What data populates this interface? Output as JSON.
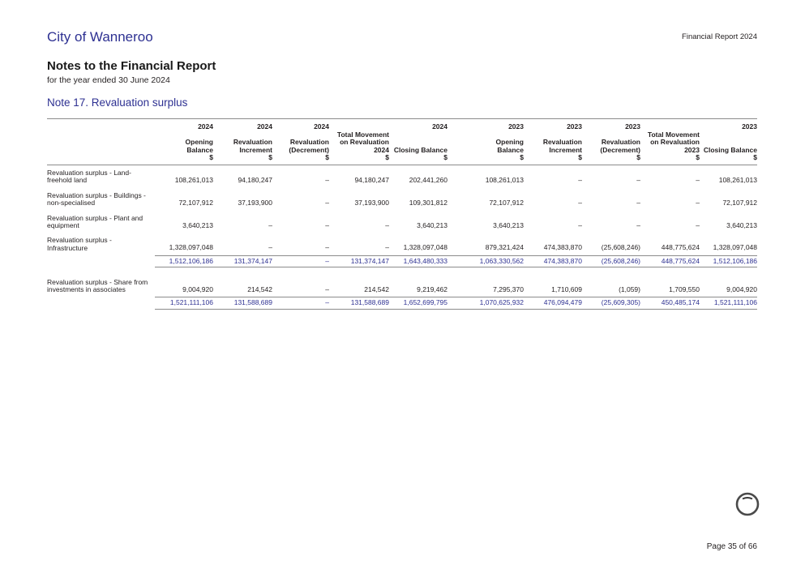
{
  "page": {
    "org_name": "City of Wanneroo",
    "report_label": "Financial Report 2024",
    "title": "Notes to the Financial Report",
    "subtitle": "for the year ended 30 June 2024",
    "note_heading": "Note 17. Revaluation surplus",
    "page_number": "Page 35 of 66"
  },
  "colors": {
    "brand_blue": "#2e3192",
    "text_black": "#231f20",
    "rule_gray": "#8c8c8c"
  },
  "icons": {
    "stamp": "circular-stamp-icon"
  },
  "table": {
    "columns": [
      {
        "name": "opening-balance-2024",
        "lines": [
          "2024",
          "",
          "Opening",
          "Balance",
          "$"
        ]
      },
      {
        "name": "revaluation-increment-2024",
        "lines": [
          "2024",
          "",
          "Revaluation",
          "Increment",
          "$"
        ]
      },
      {
        "name": "revaluation-decrement-2024",
        "lines": [
          "2024",
          "",
          "Revaluation",
          "(Decrement)",
          "$"
        ]
      },
      {
        "name": "total-movement-2024",
        "lines": [
          "",
          "Total Movement",
          "on Revaluation",
          "2024",
          "$"
        ]
      },
      {
        "name": "closing-balance-2024",
        "lines": [
          "2024",
          "",
          "",
          "Closing Balance",
          "$"
        ]
      },
      {
        "name": "opening-balance-2023",
        "lines": [
          "2023",
          "",
          "Opening",
          "Balance",
          "$"
        ]
      },
      {
        "name": "revaluation-increment-2023",
        "lines": [
          "2023",
          "",
          "Revaluation",
          "Increment",
          "$"
        ]
      },
      {
        "name": "revaluation-decrement-2023",
        "lines": [
          "2023",
          "",
          "Revaluation",
          "(Decrement)",
          "$"
        ]
      },
      {
        "name": "total-movement-2023",
        "lines": [
          "",
          "Total Movement",
          "on Revaluation",
          "2023",
          "$"
        ]
      },
      {
        "name": "closing-balance-2023",
        "lines": [
          "2023",
          "",
          "",
          "Closing Balance",
          "$"
        ]
      }
    ],
    "rows": [
      {
        "name": "row-land-freehold",
        "style": "normal",
        "gap_before": false,
        "label": [
          "Revaluation surplus - Land-",
          "freehold land"
        ],
        "values": [
          "108,261,013",
          "94,180,247",
          "–",
          "94,180,247",
          "202,441,260",
          "108,261,013",
          "–",
          "–",
          "–",
          "108,261,013"
        ]
      },
      {
        "name": "row-buildings-non-specialised",
        "style": "normal",
        "gap_before": false,
        "label": [
          "Revaluation surplus - Buildings -",
          "non-specialised"
        ],
        "values": [
          "72,107,912",
          "37,193,900",
          "–",
          "37,193,900",
          "109,301,812",
          "72,107,912",
          "–",
          "–",
          "–",
          "72,107,912"
        ]
      },
      {
        "name": "row-plant-and-equipment",
        "style": "normal",
        "gap_before": false,
        "label": [
          "Revaluation surplus - Plant and",
          "equipment"
        ],
        "values": [
          "3,640,213",
          "–",
          "–",
          "–",
          "3,640,213",
          "3,640,213",
          "–",
          "–",
          "–",
          "3,640,213"
        ]
      },
      {
        "name": "row-infrastructure",
        "style": "normal",
        "gap_before": false,
        "label": [
          "Revaluation surplus -",
          "Infrastructure"
        ],
        "values": [
          "1,328,097,048",
          "–",
          "–",
          "–",
          "1,328,097,048",
          "879,321,424",
          "474,383,870",
          "(25,608,246)",
          "448,775,624",
          "1,328,097,048"
        ]
      },
      {
        "name": "row-subtotal",
        "style": "subtotal",
        "gap_before": false,
        "label": [],
        "values": [
          "1,512,106,186",
          "131,374,147",
          "–",
          "131,374,147",
          "1,643,480,333",
          "1,063,330,562",
          "474,383,870",
          "(25,608,246)",
          "448,775,624",
          "1,512,106,186"
        ]
      },
      {
        "name": "row-share-from-investments",
        "style": "normal",
        "gap_before": true,
        "label": [
          "Revaluation surplus - Share from",
          "investments in associates"
        ],
        "values": [
          "9,004,920",
          "214,542",
          "–",
          "214,542",
          "9,219,462",
          "7,295,370",
          "1,710,609",
          "(1,059)",
          "1,709,550",
          "9,004,920"
        ]
      },
      {
        "name": "row-total",
        "style": "total",
        "gap_before": false,
        "label": [],
        "values": [
          "1,521,111,106",
          "131,588,689",
          "–",
          "131,588,689",
          "1,652,699,795",
          "1,070,625,932",
          "476,094,479",
          "(25,609,305)",
          "450,485,174",
          "1,521,111,106"
        ]
      }
    ]
  }
}
